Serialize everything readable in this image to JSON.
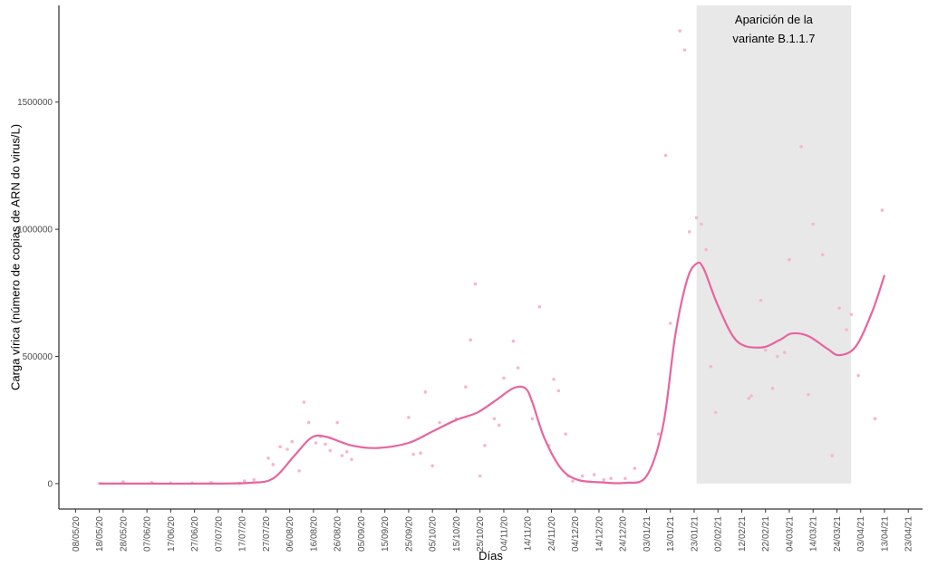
{
  "chart_data": {
    "type": "scatter",
    "xlabel": "Días",
    "ylabel": "Carga vírica (número de copias de ARN do virus/L)",
    "x_ticks": [
      "08/05/20",
      "18/05/20",
      "28/05/20",
      "07/06/20",
      "17/06/20",
      "27/06/20",
      "07/07/20",
      "17/07/20",
      "27/07/20",
      "06/08/20",
      "16/08/20",
      "26/08/20",
      "05/09/20",
      "15/09/20",
      "25/09/20",
      "05/10/20",
      "15/10/20",
      "25/10/20",
      "04/11/20",
      "14/11/20",
      "24/11/20",
      "04/12/20",
      "14/12/20",
      "24/12/20",
      "03/01/21",
      "13/01/21",
      "23/01/21",
      "02/02/21",
      "12/02/21",
      "22/02/21",
      "04/03/21",
      "14/03/21",
      "24/03/21",
      "03/04/21",
      "13/04/21",
      "23/04/21"
    ],
    "y_ticks": [
      0,
      500000,
      1000000,
      1500000
    ],
    "ylim": [
      -100000,
      1880000
    ],
    "x_range": [
      "01/05/20",
      "29/04/21"
    ],
    "grid": false,
    "annotation": {
      "lines": [
        "Aparición de la",
        "variante B.1.1.7"
      ],
      "shaded_from": "24/01/21",
      "shaded_to": "30/03/21"
    },
    "colors": {
      "smooth_line": "#e8649e",
      "points": "#f5b8cc",
      "shaded_region": "#e8e8e8"
    },
    "series": [
      {
        "kind": "points",
        "x": [
          "18/05/20",
          "28/05/20",
          "09/06/20",
          "17/06/20",
          "26/06/20",
          "04/07/20",
          "16/07/20",
          "18/07/20",
          "22/07/20",
          "28/07/20",
          "30/07/20",
          "02/08/20",
          "05/08/20",
          "07/08/20",
          "10/08/20",
          "12/08/20",
          "14/08/20",
          "17/08/20",
          "19/08/20",
          "21/08/20",
          "23/08/20",
          "26/08/20",
          "28/08/20",
          "30/08/20",
          "01/09/20",
          "25/09/20",
          "27/09/20",
          "30/09/20",
          "02/10/20",
          "05/10/20",
          "08/10/20",
          "15/10/20",
          "19/10/20",
          "21/10/20",
          "23/10/20",
          "25/10/20",
          "27/10/20",
          "31/10/20",
          "02/11/20",
          "04/11/20",
          "08/11/20",
          "10/11/20",
          "16/11/20",
          "19/11/20",
          "23/11/20",
          "25/11/20",
          "27/11/20",
          "30/11/20",
          "01/12/20",
          "03/12/20",
          "07/12/20",
          "12/12/20",
          "16/12/20",
          "19/12/20",
          "25/12/20",
          "29/12/20",
          "08/01/21",
          "11/01/21",
          "13/01/21",
          "17/01/21",
          "19/01/21",
          "21/01/21",
          "24/01/21",
          "26/01/21",
          "28/01/21",
          "30/01/21",
          "01/02/21",
          "15/02/21",
          "16/02/21",
          "20/02/21",
          "22/02/21",
          "25/02/21",
          "27/02/21",
          "02/03/21",
          "04/03/21",
          "09/03/21",
          "12/03/21",
          "14/03/21",
          "18/03/21",
          "22/03/21",
          "25/03/21",
          "28/03/21",
          "30/03/21",
          "02/04/21",
          "09/04/21",
          "12/04/21"
        ],
        "y": [
          1000,
          7000,
          4000,
          2000,
          2000,
          4000,
          1000,
          10000,
          15000,
          100000,
          75000,
          145000,
          135000,
          165000,
          50000,
          320000,
          240000,
          160000,
          185000,
          155000,
          130000,
          240000,
          110000,
          125000,
          95000,
          260000,
          115000,
          120000,
          360000,
          70000,
          240000,
          255000,
          380000,
          565000,
          785000,
          30000,
          150000,
          255000,
          230000,
          415000,
          560000,
          455000,
          255000,
          695000,
          150000,
          410000,
          365000,
          195000,
          30000,
          10000,
          30000,
          35000,
          15000,
          20000,
          20000,
          60000,
          195000,
          1290000,
          630000,
          1780000,
          1705000,
          990000,
          1045000,
          1020000,
          920000,
          460000,
          280000,
          335000,
          345000,
          720000,
          525000,
          375000,
          500000,
          515000,
          880000,
          1325000,
          350000,
          1020000,
          900000,
          110000,
          690000,
          605000,
          665000,
          425000,
          255000,
          1075000
        ]
      },
      {
        "kind": "smooth_line",
        "x": [
          "18/05/20",
          "05/06/20",
          "01/07/20",
          "20/07/20",
          "30/07/20",
          "08/08/20",
          "15/08/20",
          "21/08/20",
          "01/09/20",
          "12/09/20",
          "25/09/20",
          "05/10/20",
          "15/10/20",
          "24/10/20",
          "01/11/20",
          "08/11/20",
          "13/11/20",
          "16/11/20",
          "21/11/20",
          "28/11/20",
          "05/12/20",
          "15/12/20",
          "25/12/20",
          "03/01/21",
          "10/01/21",
          "15/01/21",
          "20/01/21",
          "24/01/21",
          "27/01/21",
          "02/02/21",
          "10/02/21",
          "20/02/21",
          "28/02/21",
          "05/03/21",
          "12/03/21",
          "20/03/21",
          "25/03/21",
          "01/04/21",
          "08/04/21",
          "13/04/21"
        ],
        "y": [
          0,
          0,
          0,
          3000,
          20000,
          110000,
          180000,
          185000,
          150000,
          140000,
          160000,
          205000,
          250000,
          280000,
          330000,
          375000,
          375000,
          320000,
          180000,
          60000,
          15000,
          5000,
          3000,
          30000,
          230000,
          580000,
          800000,
          865000,
          845000,
          700000,
          560000,
          535000,
          565000,
          590000,
          580000,
          530000,
          505000,
          540000,
          680000,
          820000
        ]
      }
    ]
  }
}
